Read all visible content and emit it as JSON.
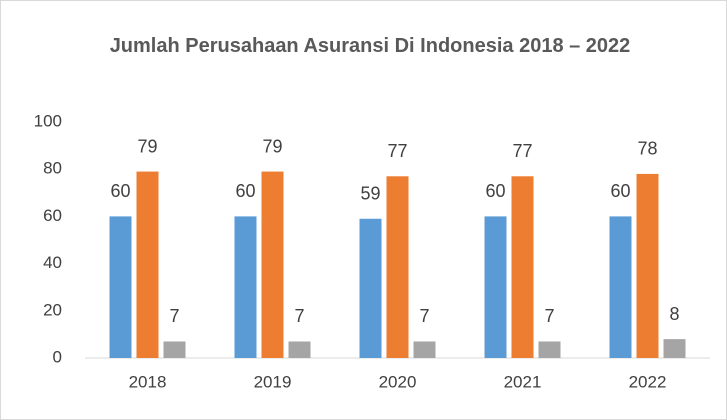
{
  "chart_data": {
    "type": "bar",
    "title": "Jumlah Perusahaan Asuransi Di Indonesia 2018 – 2022",
    "categories": [
      "2018",
      "2019",
      "2020",
      "2021",
      "2022"
    ],
    "series": [
      {
        "color": "#5b9bd5",
        "values": [
          60,
          60,
          59,
          60,
          60
        ]
      },
      {
        "color": "#ed7d31",
        "values": [
          79,
          79,
          77,
          77,
          78
        ]
      },
      {
        "color": "#a5a5a5",
        "values": [
          7,
          7,
          7,
          7,
          8
        ]
      }
    ],
    "ylim": [
      0,
      100
    ],
    "yticks": [
      0,
      20,
      40,
      60,
      80,
      100
    ],
    "grid": false
  }
}
